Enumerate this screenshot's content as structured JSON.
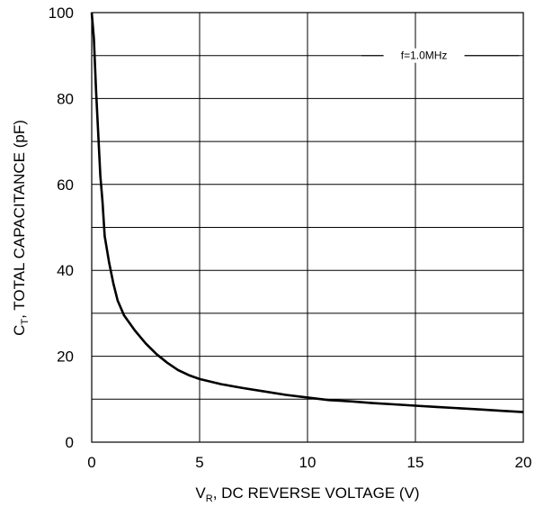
{
  "chart_data": {
    "type": "line",
    "title": "",
    "xlabel": {
      "main": "V",
      "sub": "R",
      "rest": ", DC REVERSE VOLTAGE (V)"
    },
    "ylabel": {
      "main": "C",
      "sub": "T",
      "rest": ", TOTAL CAPACITANCE (pF)"
    },
    "xlim": [
      0,
      20
    ],
    "ylim": [
      0,
      100
    ],
    "x_ticks": [
      0,
      5,
      10,
      15,
      20
    ],
    "y_ticks": [
      0,
      20,
      40,
      60,
      80,
      100
    ],
    "grid": true,
    "annotation": "f=1.0MHz",
    "series": [
      {
        "x": [
          0,
          0.1,
          0.2,
          0.3,
          0.4,
          0.5,
          0.6,
          0.8,
          1.0,
          1.2,
          1.5,
          2,
          2.5,
          3,
          3.5,
          4,
          4.5,
          5,
          6,
          7,
          8,
          9,
          10,
          11,
          12,
          13,
          14,
          15,
          16,
          17,
          18,
          19,
          20
        ],
        "y": [
          100,
          94,
          82,
          72,
          62,
          56,
          48,
          42,
          37,
          33,
          29.5,
          26,
          23,
          20.5,
          18.5,
          16.8,
          15.6,
          14.7,
          13.5,
          12.6,
          11.8,
          11,
          10.4,
          9.8,
          9.5,
          9.1,
          8.8,
          8.5,
          8.2,
          7.9,
          7.6,
          7.3,
          7.0
        ]
      }
    ]
  }
}
